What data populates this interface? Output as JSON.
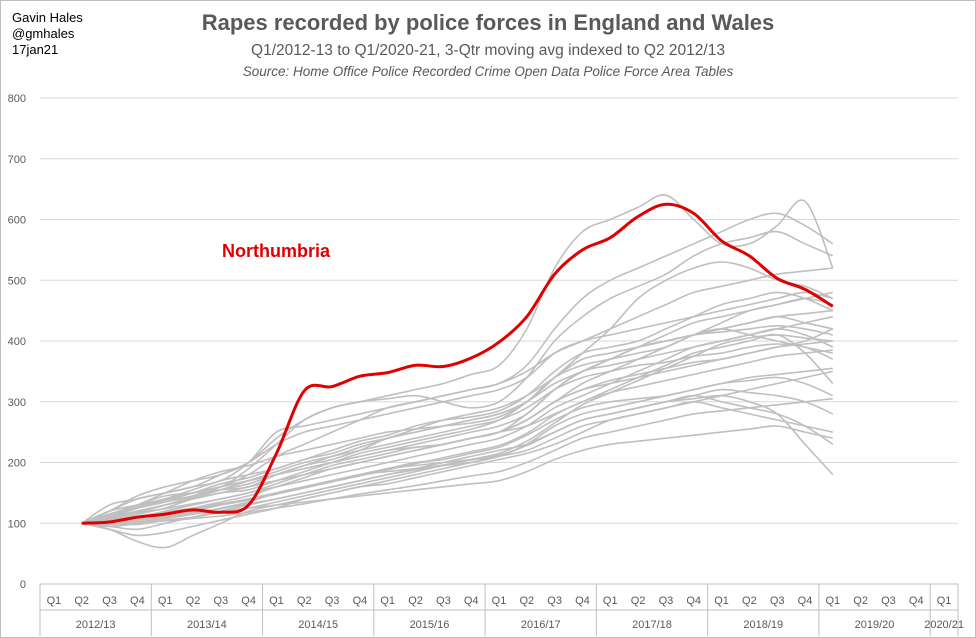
{
  "author": [
    "Gavin Hales",
    "@gmhales",
    "17jan21"
  ],
  "chart_data": {
    "type": "line",
    "title": "Rapes recorded by police forces in England and Wales",
    "subtitle": "Q1/2012-13 to Q1/2020-21, 3-Qtr moving avg indexed to Q2 2012/13",
    "source": "Source: Home Office Police Recorded Crime Open Data Police Force Area Tables",
    "ylim": [
      0,
      800
    ],
    "yticks": [
      0,
      100,
      200,
      300,
      400,
      500,
      600,
      700,
      800
    ],
    "grid": true,
    "quarters": [
      "Q1",
      "Q2",
      "Q3",
      "Q4",
      "Q1",
      "Q2",
      "Q3",
      "Q4",
      "Q1",
      "Q2",
      "Q3",
      "Q4",
      "Q1",
      "Q2",
      "Q3",
      "Q4",
      "Q1",
      "Q2",
      "Q3",
      "Q4",
      "Q1",
      "Q2",
      "Q3",
      "Q4",
      "Q1",
      "Q2",
      "Q3",
      "Q4",
      "Q1",
      "Q2",
      "Q3",
      "Q4",
      "Q1"
    ],
    "years": [
      "2012/13",
      "2013/14",
      "2014/15",
      "2015/16",
      "2016/17",
      "2017/18",
      "2018/19",
      "2019/20",
      "2020/21"
    ],
    "highlight": {
      "name": "Northumbria",
      "color": "#e00000",
      "values": [
        null,
        100,
        102,
        110,
        115,
        122,
        118,
        130,
        215,
        318,
        325,
        342,
        348,
        360,
        358,
        372,
        398,
        440,
        510,
        550,
        570,
        605,
        625,
        610,
        565,
        540,
        503,
        485,
        457,
        null,
        null,
        null,
        null
      ]
    },
    "background_color": "#bfbfbf",
    "background_series": [
      [
        null,
        100,
        110,
        120,
        130,
        145,
        160,
        170,
        180,
        190,
        200,
        210,
        220,
        225,
        230,
        240,
        250,
        270,
        300,
        320,
        330,
        340,
        350,
        360,
        370,
        380,
        390,
        400,
        420,
        null,
        null,
        null,
        null
      ],
      [
        null,
        100,
        95,
        90,
        100,
        110,
        120,
        130,
        140,
        150,
        160,
        170,
        180,
        190,
        200,
        210,
        220,
        230,
        250,
        270,
        280,
        290,
        300,
        310,
        300,
        290,
        280,
        260,
        230,
        null,
        null,
        null,
        null
      ],
      [
        null,
        100,
        105,
        115,
        125,
        140,
        150,
        155,
        170,
        185,
        200,
        215,
        225,
        235,
        245,
        255,
        270,
        300,
        340,
        360,
        370,
        380,
        390,
        410,
        420,
        410,
        400,
        390,
        380,
        null,
        null,
        null,
        null
      ],
      [
        null,
        100,
        115,
        130,
        145,
        150,
        160,
        190,
        230,
        270,
        290,
        300,
        310,
        320,
        330,
        345,
        360,
        420,
        520,
        580,
        600,
        620,
        640,
        600,
        560,
        560,
        590,
        630,
        520,
        null,
        null,
        null,
        null
      ],
      [
        null,
        100,
        90,
        80,
        85,
        95,
        105,
        115,
        125,
        140,
        150,
        160,
        165,
        175,
        185,
        195,
        205,
        215,
        230,
        250,
        270,
        280,
        290,
        300,
        290,
        280,
        270,
        260,
        250,
        null,
        null,
        null,
        null
      ],
      [
        null,
        100,
        112,
        125,
        138,
        150,
        165,
        175,
        190,
        205,
        220,
        235,
        245,
        260,
        270,
        275,
        285,
        310,
        350,
        380,
        390,
        400,
        420,
        440,
        460,
        470,
        480,
        470,
        450,
        null,
        null,
        null,
        null
      ],
      [
        null,
        100,
        98,
        102,
        108,
        115,
        125,
        135,
        150,
        160,
        170,
        180,
        190,
        200,
        205,
        215,
        225,
        245,
        270,
        290,
        300,
        305,
        310,
        320,
        330,
        335,
        340,
        330,
        310,
        null,
        null,
        null,
        null
      ],
      [
        null,
        100,
        120,
        140,
        150,
        160,
        170,
        200,
        250,
        260,
        270,
        280,
        290,
        300,
        310,
        320,
        330,
        360,
        420,
        470,
        500,
        520,
        540,
        560,
        580,
        600,
        610,
        590,
        560,
        null,
        null,
        null,
        null
      ],
      [
        null,
        100,
        108,
        118,
        130,
        142,
        155,
        170,
        185,
        200,
        210,
        220,
        230,
        240,
        250,
        260,
        270,
        290,
        320,
        340,
        350,
        360,
        365,
        375,
        380,
        390,
        395,
        390,
        370,
        null,
        null,
        null,
        null
      ],
      [
        null,
        100,
        102,
        105,
        110,
        115,
        120,
        125,
        130,
        135,
        140,
        145,
        150,
        155,
        160,
        165,
        170,
        185,
        205,
        220,
        230,
        235,
        240,
        245,
        250,
        255,
        260,
        250,
        240,
        null,
        null,
        null,
        null
      ],
      [
        null,
        100,
        115,
        128,
        140,
        150,
        155,
        160,
        180,
        195,
        205,
        220,
        240,
        250,
        260,
        270,
        280,
        300,
        330,
        350,
        370,
        390,
        400,
        410,
        420,
        430,
        440,
        430,
        420,
        null,
        null,
        null,
        null
      ],
      [
        null,
        100,
        110,
        125,
        140,
        155,
        170,
        180,
        190,
        205,
        215,
        230,
        240,
        250,
        260,
        270,
        280,
        300,
        340,
        380,
        420,
        470,
        500,
        520,
        530,
        520,
        500,
        490,
        470,
        null,
        null,
        null,
        null
      ],
      [
        null,
        100,
        95,
        100,
        110,
        120,
        130,
        140,
        150,
        160,
        170,
        180,
        190,
        195,
        200,
        205,
        210,
        230,
        250,
        270,
        280,
        290,
        300,
        310,
        320,
        315,
        310,
        300,
        280,
        null,
        null,
        null,
        null
      ],
      [
        null,
        100,
        110,
        120,
        130,
        140,
        150,
        160,
        170,
        180,
        190,
        200,
        210,
        220,
        230,
        240,
        250,
        270,
        300,
        330,
        350,
        370,
        390,
        410,
        430,
        450,
        460,
        470,
        480,
        null,
        null,
        null,
        null
      ],
      [
        null,
        100,
        130,
        140,
        150,
        160,
        180,
        200,
        230,
        250,
        260,
        270,
        280,
        290,
        300,
        310,
        320,
        340,
        380,
        400,
        410,
        420,
        430,
        440,
        450,
        460,
        470,
        480,
        470,
        null,
        null,
        null,
        null
      ],
      [
        null,
        100,
        105,
        110,
        115,
        125,
        135,
        145,
        160,
        175,
        190,
        200,
        210,
        220,
        230,
        240,
        250,
        280,
        320,
        350,
        360,
        370,
        380,
        390,
        400,
        410,
        420,
        410,
        390,
        null,
        null,
        null,
        null
      ],
      [
        null,
        100,
        108,
        112,
        118,
        125,
        132,
        140,
        150,
        160,
        170,
        180,
        185,
        190,
        195,
        200,
        210,
        220,
        240,
        260,
        270,
        280,
        290,
        300,
        310,
        320,
        330,
        340,
        350,
        null,
        null,
        null,
        null
      ],
      [
        null,
        100,
        112,
        118,
        124,
        132,
        140,
        150,
        165,
        180,
        195,
        205,
        215,
        225,
        230,
        240,
        250,
        270,
        300,
        320,
        335,
        345,
        355,
        365,
        370,
        380,
        390,
        395,
        400,
        null,
        null,
        null,
        null
      ],
      [
        null,
        100,
        90,
        70,
        60,
        80,
        100,
        120,
        130,
        140,
        150,
        160,
        170,
        180,
        190,
        200,
        210,
        230,
        260,
        280,
        290,
        300,
        310,
        320,
        330,
        340,
        345,
        350,
        355,
        null,
        null,
        null,
        null
      ],
      [
        null,
        100,
        120,
        130,
        140,
        150,
        160,
        180,
        210,
        230,
        250,
        270,
        290,
        300,
        310,
        320,
        330,
        350,
        380,
        400,
        420,
        440,
        460,
        480,
        490,
        500,
        510,
        515,
        520,
        null,
        null,
        null,
        null
      ],
      [
        null,
        100,
        100,
        102,
        104,
        108,
        112,
        118,
        125,
        132,
        140,
        148,
        155,
        162,
        170,
        178,
        185,
        200,
        220,
        240,
        250,
        260,
        270,
        280,
        285,
        290,
        295,
        300,
        305,
        null,
        null,
        null,
        null
      ],
      [
        null,
        100,
        115,
        125,
        135,
        145,
        155,
        165,
        180,
        195,
        210,
        225,
        240,
        255,
        270,
        280,
        290,
        310,
        340,
        370,
        380,
        390,
        400,
        410,
        420,
        430,
        440,
        445,
        450,
        null,
        null,
        null,
        null
      ],
      [
        null,
        100,
        105,
        110,
        120,
        130,
        140,
        150,
        160,
        170,
        180,
        190,
        200,
        210,
        220,
        230,
        240,
        260,
        290,
        310,
        330,
        350,
        370,
        390,
        400,
        410,
        420,
        430,
        440,
        null,
        null,
        null,
        null
      ],
      [
        null,
        100,
        110,
        125,
        135,
        150,
        160,
        170,
        180,
        190,
        200,
        210,
        220,
        230,
        240,
        250,
        260,
        280,
        320,
        350,
        370,
        390,
        410,
        430,
        440,
        450,
        460,
        470,
        460,
        null,
        null,
        null,
        null
      ],
      [
        null,
        100,
        100,
        98,
        105,
        110,
        118,
        125,
        135,
        145,
        155,
        165,
        175,
        185,
        195,
        205,
        215,
        235,
        265,
        295,
        315,
        335,
        355,
        375,
        395,
        405,
        410,
        405,
        400,
        null,
        null,
        null,
        null
      ],
      [
        null,
        100,
        120,
        145,
        160,
        170,
        180,
        200,
        240,
        270,
        290,
        300,
        305,
        310,
        300,
        290,
        300,
        340,
        400,
        440,
        470,
        490,
        510,
        540,
        560,
        570,
        580,
        560,
        540,
        null,
        null,
        null,
        null
      ],
      [
        null,
        100,
        102,
        108,
        115,
        122,
        130,
        138,
        148,
        158,
        168,
        178,
        188,
        198,
        208,
        218,
        228,
        248,
        278,
        300,
        315,
        325,
        335,
        345,
        355,
        365,
        375,
        380,
        385,
        null,
        null,
        null,
        null
      ],
      [
        null,
        100,
        110,
        130,
        150,
        170,
        185,
        195,
        210,
        220,
        230,
        240,
        250,
        255,
        260,
        265,
        275,
        300,
        340,
        370,
        380,
        390,
        400,
        410,
        415,
        420,
        425,
        420,
        410,
        null,
        null,
        null,
        null
      ],
      [
        null,
        100,
        100,
        105,
        112,
        118,
        124,
        132,
        140,
        150,
        160,
        170,
        180,
        188,
        196,
        204,
        212,
        228,
        250,
        270,
        280,
        290,
        300,
        305,
        310,
        300,
        280,
        230,
        180,
        null,
        null,
        null,
        null
      ],
      [
        null,
        100,
        110,
        120,
        130,
        140,
        150,
        160,
        170,
        180,
        190,
        200,
        210,
        220,
        230,
        240,
        250,
        260,
        280,
        300,
        320,
        340,
        360,
        380,
        390,
        400,
        410,
        380,
        330,
        null,
        null,
        null,
        null
      ]
    ]
  },
  "annotation": "Northumbria",
  "colors": {
    "highlight": "#e00000",
    "others": "#bfbfbf",
    "grid": "#d9d9d9",
    "text": "#595959"
  }
}
